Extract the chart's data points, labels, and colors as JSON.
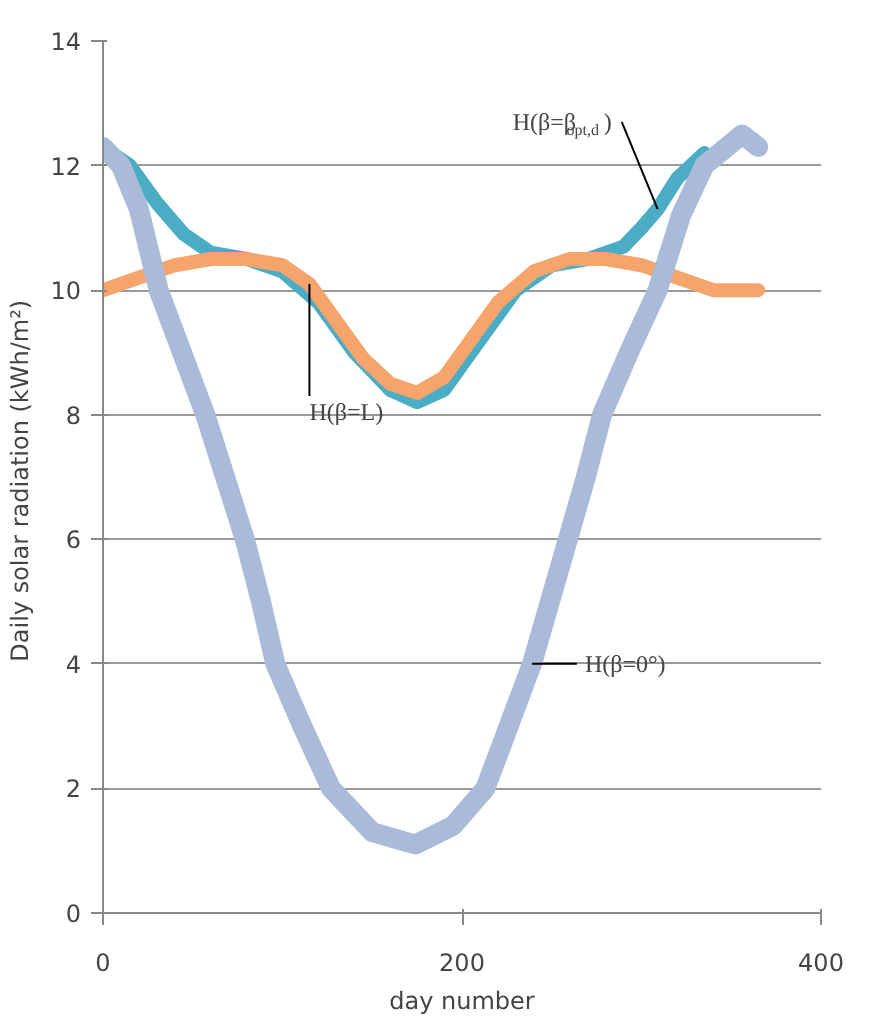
{
  "chart_data": {
    "type": "line",
    "xlabel": "day number",
    "ylabel": "Daily solar radiation  (kWh/m²)",
    "xlim": [
      0,
      400
    ],
    "xticks": [
      0,
      200,
      400
    ],
    "ylim": [
      0,
      14
    ],
    "yticks": [
      0,
      2,
      4,
      6,
      8,
      10,
      12,
      14
    ],
    "grid": "y",
    "series": [
      {
        "name": "H(β=β$_{opt,d}$)",
        "color": "#4bacc6",
        "x": [
          0,
          15,
          30,
          45,
          60,
          80,
          100,
          120,
          140,
          160,
          175,
          190,
          210,
          230,
          250,
          270,
          290,
          300,
          309,
          320,
          335
        ],
        "values": [
          12.3,
          12.0,
          11.4,
          10.9,
          10.6,
          10.5,
          10.3,
          9.8,
          9.0,
          8.4,
          8.2,
          8.4,
          9.2,
          10.0,
          10.4,
          10.5,
          10.7,
          11.0,
          11.3,
          11.8,
          12.2
        ]
      },
      {
        "name": "H(β=L)",
        "color": "#f5a46b",
        "x": [
          0,
          20,
          40,
          60,
          80,
          100,
          115,
          130,
          145,
          160,
          175,
          190,
          205,
          220,
          240,
          260,
          280,
          300,
          320,
          340,
          365
        ],
        "values": [
          10,
          10.2,
          10.4,
          10.5,
          10.5,
          10.4,
          10.1,
          9.5,
          8.9,
          8.5,
          8.35,
          8.6,
          9.2,
          9.8,
          10.3,
          10.5,
          10.5,
          10.4,
          10.2,
          10,
          10
        ]
      },
      {
        "name": "H(β=0°)",
        "color": "#aabad9",
        "x": [
          0,
          10,
          20,
          31,
          44,
          57,
          68,
          79,
          88,
          96,
          111,
          127,
          150,
          174,
          195,
          213,
          226,
          239,
          249,
          259,
          269,
          278,
          293,
          309,
          322,
          335,
          356,
          365
        ],
        "values": [
          12.3,
          12.0,
          11.3,
          10,
          9,
          8,
          7,
          6,
          5,
          4,
          3,
          2,
          1.3,
          1.1,
          1.4,
          2,
          3,
          4,
          5,
          6,
          7,
          8,
          9,
          10,
          11.2,
          12,
          12.5,
          12.3
        ]
      }
    ]
  }
}
